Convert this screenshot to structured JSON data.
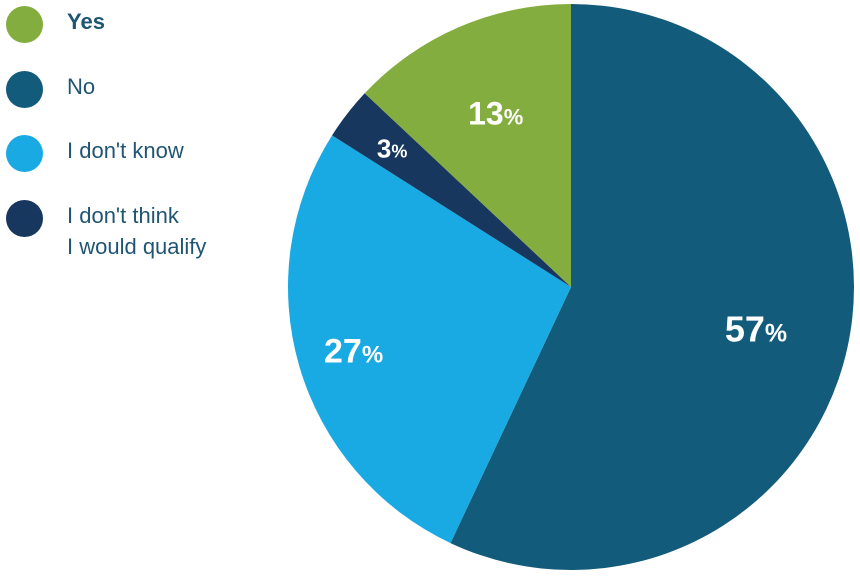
{
  "chart_data": {
    "type": "pie",
    "slices": [
      {
        "label": "No",
        "value": 57,
        "display": "57",
        "color": "#135b7a"
      },
      {
        "label": "I don't know",
        "value": 27,
        "display": "27",
        "color": "#19aae3"
      },
      {
        "label": "I don't think\nI would qualify",
        "value": 3,
        "display": "3",
        "color": "#17375e"
      },
      {
        "label": "Yes",
        "value": 13,
        "display": "13",
        "color": "#84ad3f"
      }
    ],
    "unit_suffix": "%",
    "legend_position": "top-left"
  },
  "legend": [
    {
      "label": "Yes",
      "color": "#84ad3f"
    },
    {
      "label": "No",
      "color": "#135b7a"
    },
    {
      "label": "I don't know",
      "color": "#19aae3"
    },
    {
      "label": "I don't think\nI would qualify",
      "color": "#17375e"
    }
  ]
}
